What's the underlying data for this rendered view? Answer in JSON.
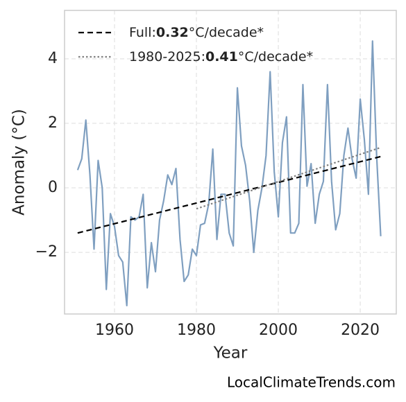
{
  "chart_data": {
    "type": "line",
    "xlabel": "Year",
    "ylabel": "Anomaly (°C)",
    "footer": "LocalClimateTrends.com",
    "xlim": [
      1947.8,
      2028.8
    ],
    "xticks": [
      1960,
      1980,
      2000,
      2020
    ],
    "ylim": [
      -3.91,
      5.5
    ],
    "yticks": [
      {
        "value": -2,
        "label": "−2"
      },
      0,
      2,
      4
    ],
    "grid": true,
    "legend": "upper left",
    "series": [
      {
        "name": "Full:",
        "rate": "0.32",
        "rate_unit": "°C/decade*",
        "color": "#000000",
        "style": "dashed",
        "legend": true,
        "x": [
          1951,
          2025
        ],
        "values": [
          -1.4,
          0.97
        ]
      },
      {
        "name": "1980-2025:",
        "rate": "0.41",
        "rate_unit": "°C/decade*",
        "color": "#808080",
        "style": "dotted",
        "legend": true,
        "x": [
          1980,
          2025
        ],
        "values": [
          -0.65,
          1.25
        ]
      },
      {
        "color": "#7f9fc0",
        "style": "solid",
        "legend": false,
        "x": [
          1951,
          1952,
          1953,
          1954,
          1955,
          1956,
          1957,
          1958,
          1959,
          1960,
          1961,
          1962,
          1963,
          1964,
          1965,
          1966,
          1967,
          1968,
          1969,
          1970,
          1971,
          1972,
          1973,
          1974,
          1975,
          1976,
          1977,
          1978,
          1979,
          1980,
          1981,
          1982,
          1983,
          1984,
          1985,
          1986,
          1987,
          1988,
          1989,
          1990,
          1991,
          1992,
          1993,
          1994,
          1995,
          1996,
          1997,
          1998,
          1999,
          2000,
          2001,
          2002,
          2003,
          2004,
          2005,
          2006,
          2007,
          2008,
          2009,
          2010,
          2011,
          2012,
          2013,
          2014,
          2015,
          2016,
          2017,
          2018,
          2019,
          2020,
          2021,
          2022,
          2023,
          2024,
          2025
        ],
        "values": [
          0.55,
          0.9,
          2.1,
          0.4,
          -1.9,
          0.85,
          0.0,
          -3.15,
          -0.8,
          -1.2,
          -2.1,
          -2.3,
          -3.65,
          -0.9,
          -1.0,
          -0.9,
          -0.2,
          -3.1,
          -1.7,
          -2.6,
          -1.0,
          -0.4,
          0.4,
          0.1,
          0.6,
          -1.6,
          -2.9,
          -2.7,
          -1.9,
          -2.1,
          -1.15,
          -1.1,
          -0.5,
          1.2,
          -1.6,
          -0.2,
          -0.2,
          -1.4,
          -1.8,
          3.1,
          1.3,
          0.7,
          -0.4,
          -2.0,
          -0.7,
          0.0,
          1.0,
          3.6,
          0.5,
          -0.9,
          1.4,
          2.2,
          -1.4,
          -1.4,
          -1.1,
          3.2,
          0.05,
          0.75,
          -1.1,
          -0.2,
          0.2,
          3.2,
          0.2,
          -1.3,
          -0.8,
          1.0,
          1.85,
          0.9,
          0.3,
          2.75,
          1.5,
          -0.2,
          4.55,
          1.0,
          -1.5
        ]
      }
    ]
  }
}
